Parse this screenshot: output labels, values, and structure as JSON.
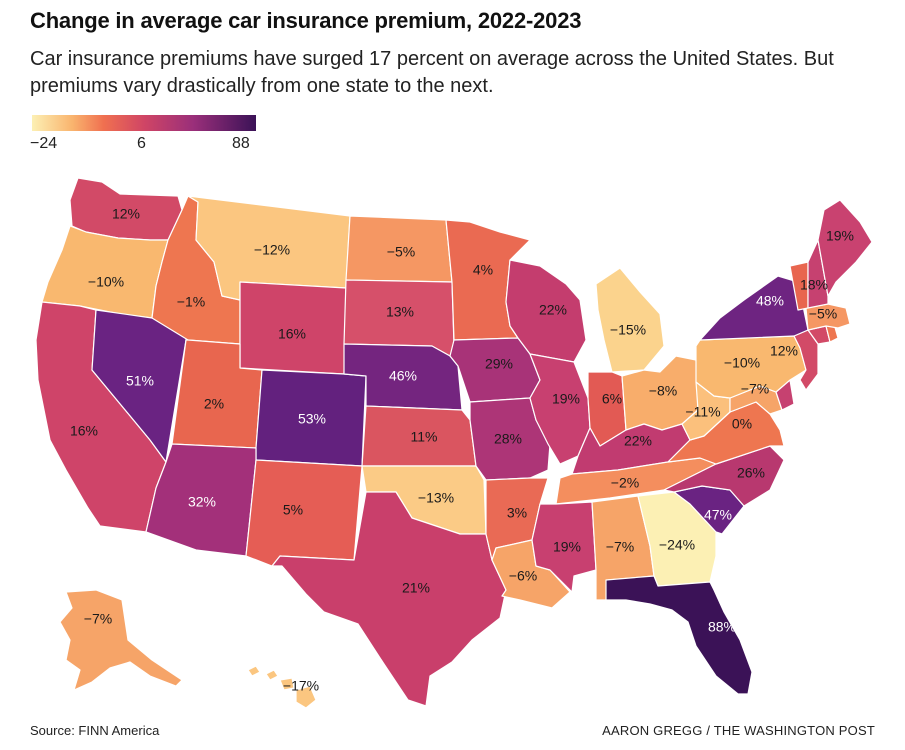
{
  "title": "Change in average car insurance premium, 2022-2023",
  "subtitle": "Car insurance premiums have surged 17 percent on average across the United States. But premiums vary drastically from one state to the next.",
  "legend": {
    "min": "−24",
    "mid": "6",
    "max": "88"
  },
  "states": {
    "WA": "12%",
    "OR": "−10%",
    "CA": "16%",
    "NV": "51%",
    "ID": "−1%",
    "MT": "−12%",
    "WY": "16%",
    "UT": "2%",
    "AZ": "32%",
    "CO": "53%",
    "NM": "5%",
    "ND": "−5%",
    "SD": "13%",
    "NE": "46%",
    "KS": "11%",
    "OK": "−13%",
    "TX": "21%",
    "MN": "4%",
    "IA": "29%",
    "MO": "28%",
    "AR": "3%",
    "LA": "−6%",
    "WI": "22%",
    "IL": "19%",
    "MI": "−15%",
    "IN": "6%",
    "OH": "−8%",
    "KY": "22%",
    "TN": "−2%",
    "MS": "19%",
    "AL": "−7%",
    "GA": "−24%",
    "FL": "88%",
    "SC": "47%",
    "NC": "26%",
    "VA": "0%",
    "WV": "−11%",
    "PA": "−10%",
    "NY": "48%",
    "ME": "19%",
    "NH": "18%",
    "MA": "−5%",
    "NJ": "12%",
    "MD": "−7%",
    "AK": "−7%",
    "HI": "−17%"
  },
  "colors": {
    "WA": "#d24a67",
    "OR": "#f9b86f",
    "CA": "#cf4469",
    "NV": "#6a2382",
    "ID": "#ee7650",
    "MT": "#fbc680",
    "WY": "#cf4469",
    "UT": "#e8664f",
    "AZ": "#a3307a",
    "CO": "#63217e",
    "NM": "#e55d55",
    "ND": "#f59763",
    "SD": "#d6506a",
    "NE": "#74257f",
    "KS": "#da5560",
    "OK": "#fbcb86",
    "TX": "#c93f6b",
    "MN": "#ea6a52",
    "IA": "#a83378",
    "MO": "#ad3577",
    "AR": "#e96a55",
    "LA": "#f6a468",
    "WI": "#c43d6e",
    "IL": "#c84070",
    "MI": "#fbd38d",
    "IN": "#e25a54",
    "OH": "#f8ad6b",
    "KY": "#c13b70",
    "TN": "#f48e5e",
    "MS": "#c84070",
    "AL": "#f6a468",
    "GA": "#fcf0b4",
    "FL": "#3b1257",
    "SC": "#6a2382",
    "NC": "#b8386f",
    "VA": "#ee7650",
    "WV": "#fbc07c",
    "PA": "#f9b86f",
    "NY": "#6e2481",
    "ME": "#c94270",
    "VT": "#e8664f",
    "NH": "#c64170",
    "MA": "#f59763",
    "RI": "#ee7650",
    "CT": "#d24a67",
    "NJ": "#d24a67",
    "DE": "#c64170",
    "MD": "#f6a468",
    "AK": "#f6a468",
    "HI": "#fbc680"
  },
  "source": "Source: FINN America",
  "credit": "AARON GREGG / THE WASHINGTON POST"
}
